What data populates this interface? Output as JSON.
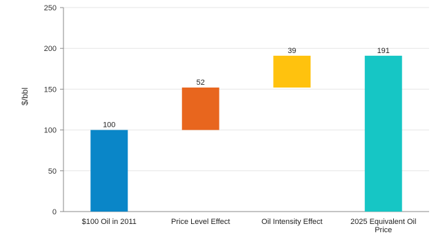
{
  "chart_data": {
    "type": "bar",
    "subtype": "waterfall",
    "title": "",
    "xlabel": "",
    "ylabel": "$/bbl",
    "ylim": [
      0,
      250
    ],
    "yticks": [
      0,
      50,
      100,
      150,
      200,
      250
    ],
    "grid": true,
    "legend": "none",
    "categories": [
      [
        "$100 Oil in 2011"
      ],
      [
        "Price Level Effect"
      ],
      [
        "Oil Intensity Effect"
      ],
      [
        "2025 Equivalent Oil",
        "Price"
      ]
    ],
    "bars": [
      {
        "base": 0,
        "value": 100,
        "label": "100",
        "color": "#0a86c8"
      },
      {
        "base": 100,
        "value": 52,
        "label": "52",
        "color": "#e8661e"
      },
      {
        "base": 152,
        "value": 39,
        "label": "39",
        "color": "#ffc20e"
      },
      {
        "base": 0,
        "value": 191,
        "label": "191",
        "color": "#16c6c5"
      }
    ]
  }
}
